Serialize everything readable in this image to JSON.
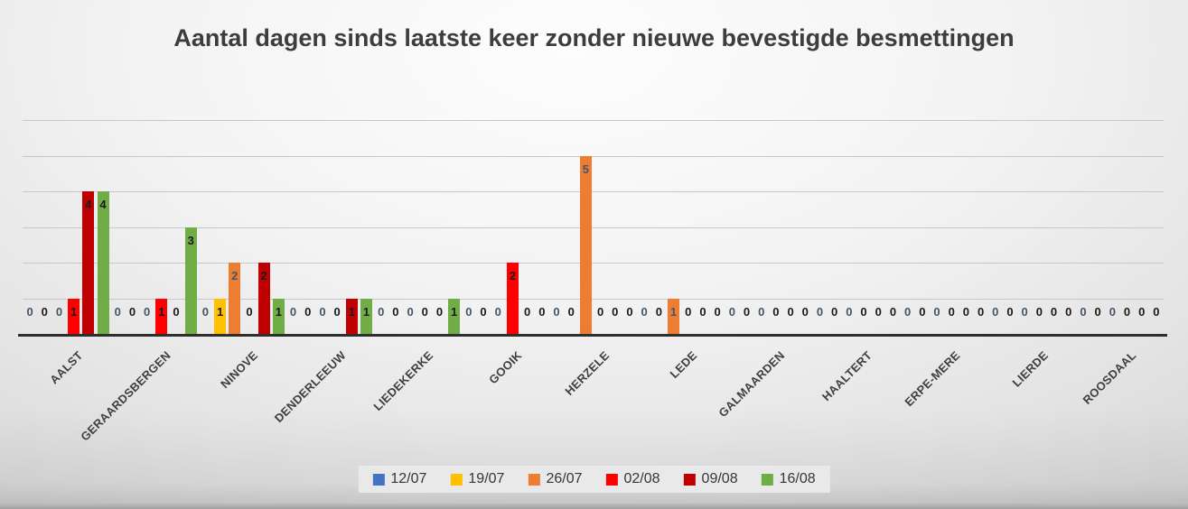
{
  "chart_data": {
    "type": "bar",
    "title": "Aantal dagen sinds laatste keer zonder nieuwe bevestigde besmettingen",
    "categories": [
      "AALST",
      "GERAARDSBERGEN",
      "NINOVE",
      "DENDERLEEUW",
      "LIEDEKERKE",
      "GOOIK",
      "HERZELE",
      "LEDE",
      "GALMAARDEN",
      "HAALTERT",
      "ERPE-MERE",
      "LIERDE",
      "ROOSDAAL"
    ],
    "series": [
      {
        "name": "12/07",
        "color": "#4472C4",
        "label_color": "#44546A",
        "values": [
          0,
          0,
          0,
          0,
          0,
          0,
          0,
          0,
          0,
          0,
          0,
          0,
          0
        ]
      },
      {
        "name": "19/07",
        "color": "#FFC000",
        "label_color": "#1A1A1A",
        "values": [
          0,
          0,
          1,
          0,
          0,
          0,
          0,
          0,
          0,
          0,
          0,
          0,
          0
        ]
      },
      {
        "name": "26/07",
        "color": "#ED7D31",
        "label_color": "#44546A",
        "values": [
          0,
          0,
          2,
          0,
          0,
          0,
          5,
          1,
          0,
          0,
          0,
          0,
          0
        ]
      },
      {
        "name": "02/08",
        "color": "#FF0000",
        "label_color": "#1A1A1A",
        "values": [
          1,
          1,
          0,
          0,
          0,
          2,
          0,
          0,
          0,
          0,
          0,
          0,
          0
        ]
      },
      {
        "name": "09/08",
        "color": "#C00000",
        "label_color": "#1A1A1A",
        "values": [
          4,
          0,
          2,
          1,
          0,
          0,
          0,
          0,
          0,
          0,
          0,
          0,
          0
        ]
      },
      {
        "name": "16/08",
        "color": "#70AD47",
        "label_color": "#1A1A1A",
        "values": [
          4,
          3,
          1,
          1,
          1,
          0,
          0,
          0,
          0,
          0,
          0,
          0,
          0
        ]
      }
    ],
    "ylim": [
      0,
      6
    ],
    "grid_step": 1,
    "gridlines": true,
    "data_labels": "inside-end",
    "legend_position": "bottom",
    "xlabel": "",
    "ylabel": ""
  }
}
